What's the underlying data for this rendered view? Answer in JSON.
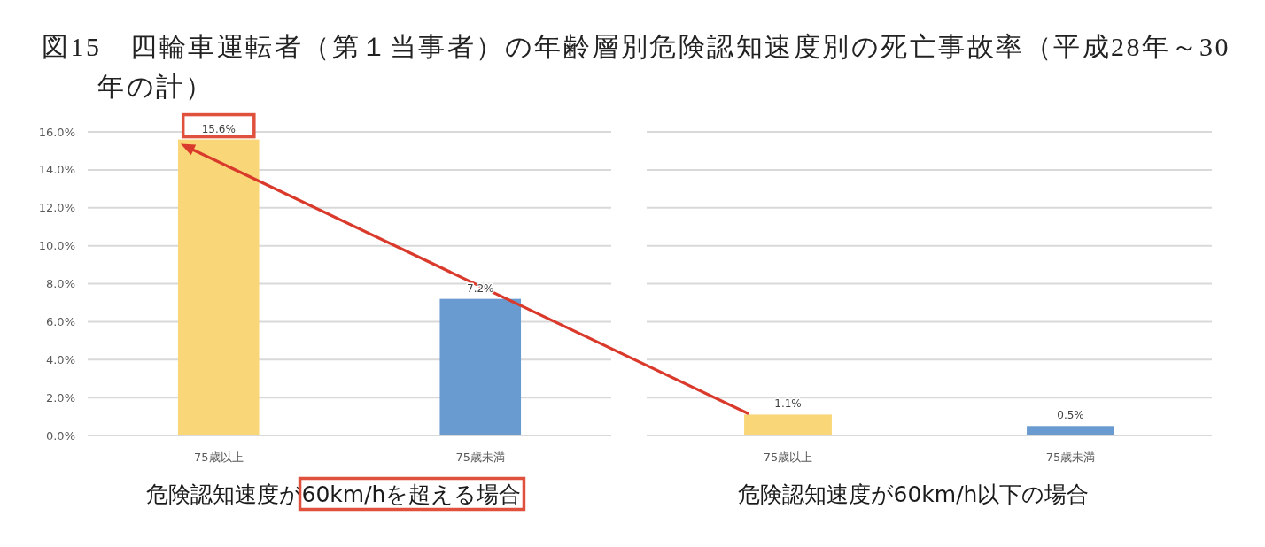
{
  "chart_data": [
    {
      "type": "bar",
      "title": "図15　四輪車運転者（第１当事者）の年齢層別危険認知速度別の死亡事故率（平成28年～30年の計）",
      "xlabel": "危険認知速度が60km/hを超える場合",
      "categories": [
        "75歳以上",
        "75歳未満"
      ],
      "values": [
        15.6,
        7.2
      ],
      "colors": [
        "#f9d778",
        "#6a9bd0"
      ],
      "value_labels": [
        "15.6%",
        "7.2%"
      ],
      "ylim": [
        0,
        16
      ],
      "yticks": [
        {
          "value": 0,
          "label": "0.0%"
        },
        {
          "value": 2,
          "label": "2.0%"
        },
        {
          "value": 4,
          "label": "4.0%"
        },
        {
          "value": 6,
          "label": "6.0%"
        },
        {
          "value": 8,
          "label": "8.0%"
        },
        {
          "value": 10,
          "label": "10.0%"
        },
        {
          "value": 12,
          "label": "12.0%"
        },
        {
          "value": 14,
          "label": "14.0%"
        },
        {
          "value": 16,
          "label": "16.0%"
        }
      ],
      "grid": "y"
    },
    {
      "type": "bar",
      "xlabel": "危険認知速度が60km/h以下の場合",
      "categories": [
        "75歳以上",
        "75歳未満"
      ],
      "values": [
        1.1,
        0.5
      ],
      "colors": [
        "#f9d778",
        "#6a9bd0"
      ],
      "value_labels": [
        "1.1%",
        "0.5%"
      ],
      "ylim": [
        0,
        16
      ],
      "yticks": [
        0,
        2,
        4,
        6,
        8,
        10,
        12,
        14,
        16
      ],
      "grid": "y",
      "tick_labels": "x"
    }
  ]
}
